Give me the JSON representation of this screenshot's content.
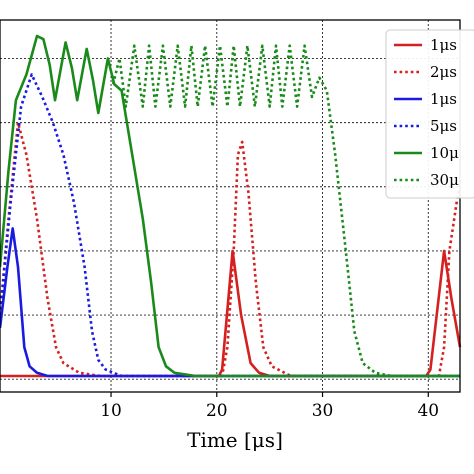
{
  "chart_data": {
    "type": "line",
    "title": "",
    "xlabel": "Time [μs]",
    "ylabel": "",
    "xlim": [
      -0.5,
      43
    ],
    "ylim": [
      -0.04,
      1.12
    ],
    "xticks": [
      10,
      20,
      30,
      40
    ],
    "xtick_labels": [
      "10",
      "20",
      "30",
      "40"
    ],
    "grid": true,
    "legend_placement": "top-right",
    "series": [
      {
        "name": "1μs",
        "color": "#d62020",
        "style": "solid",
        "points": [
          [
            -0.5,
            0.01
          ],
          [
            20.2,
            0.01
          ],
          [
            20.5,
            0.03
          ],
          [
            21.5,
            0.4
          ],
          [
            22.3,
            0.2
          ],
          [
            23.2,
            0.05
          ],
          [
            24,
            0.02
          ],
          [
            25,
            0.01
          ],
          [
            39.8,
            0.01
          ],
          [
            40.2,
            0.03
          ],
          [
            41.5,
            0.4
          ],
          [
            42.2,
            0.25
          ],
          [
            43,
            0.1
          ]
        ]
      },
      {
        "name": "2μs",
        "color": "#d62020",
        "style": "dotted",
        "points": [
          [
            -0.5,
            0.2
          ],
          [
            0.3,
            0.5
          ],
          [
            1.2,
            0.8
          ],
          [
            2,
            0.7
          ],
          [
            3,
            0.5
          ],
          [
            4,
            0.25
          ],
          [
            4.8,
            0.1
          ],
          [
            5.5,
            0.05
          ],
          [
            7,
            0.02
          ],
          [
            9,
            0.01
          ],
          [
            20.5,
            0.01
          ],
          [
            21,
            0.1
          ],
          [
            21.6,
            0.4
          ],
          [
            22,
            0.7
          ],
          [
            22.4,
            0.74
          ],
          [
            23,
            0.58
          ],
          [
            23.7,
            0.3
          ],
          [
            24.4,
            0.1
          ],
          [
            25.2,
            0.04
          ],
          [
            27,
            0.01
          ],
          [
            41,
            0.01
          ],
          [
            41.5,
            0.1
          ],
          [
            42,
            0.4
          ],
          [
            43,
            0.62
          ]
        ]
      },
      {
        "name": "1μs",
        "color": "#1a1ae0",
        "style": "solid",
        "points": [
          [
            -0.5,
            0.16
          ],
          [
            0.2,
            0.35
          ],
          [
            0.7,
            0.47
          ],
          [
            1.2,
            0.35
          ],
          [
            1.8,
            0.1
          ],
          [
            2.3,
            0.04
          ],
          [
            3,
            0.02
          ],
          [
            4,
            0.01
          ],
          [
            43,
            0.01
          ]
        ]
      },
      {
        "name": "5μs",
        "color": "#1a1ae0",
        "style": "dotted",
        "points": [
          [
            -0.5,
            0.2
          ],
          [
            0.5,
            0.55
          ],
          [
            1.5,
            0.85
          ],
          [
            2.5,
            0.95
          ],
          [
            3.5,
            0.88
          ],
          [
            4.5,
            0.8
          ],
          [
            5.5,
            0.7
          ],
          [
            6.5,
            0.55
          ],
          [
            7.5,
            0.35
          ],
          [
            8.2,
            0.15
          ],
          [
            8.8,
            0.06
          ],
          [
            9.5,
            0.03
          ],
          [
            11,
            0.01
          ],
          [
            43,
            0.01
          ]
        ]
      },
      {
        "name": "10μ",
        "color": "#1a8a1a",
        "style": "solid",
        "points": [
          [
            -0.5,
            0.35
          ],
          [
            0.3,
            0.65
          ],
          [
            1,
            0.87
          ],
          [
            2,
            0.95
          ],
          [
            3,
            1.07
          ],
          [
            3.6,
            1.06
          ],
          [
            4.2,
            0.98
          ],
          [
            4.7,
            0.87
          ],
          [
            5.7,
            1.05
          ],
          [
            6.3,
            0.97
          ],
          [
            6.8,
            0.87
          ],
          [
            7.7,
            1.03
          ],
          [
            8.3,
            0.93
          ],
          [
            8.8,
            0.83
          ],
          [
            9.7,
            1.0
          ],
          [
            10.3,
            0.92
          ],
          [
            11,
            0.9
          ],
          [
            12,
            0.7
          ],
          [
            13,
            0.5
          ],
          [
            13.8,
            0.3
          ],
          [
            14.5,
            0.1
          ],
          [
            15.2,
            0.04
          ],
          [
            16,
            0.02
          ],
          [
            18,
            0.01
          ],
          [
            43,
            0.01
          ]
        ]
      },
      {
        "name": "30μ",
        "color": "#1a8a1a",
        "style": "dotted",
        "points": [
          [
            10.2,
            0.92
          ],
          [
            10.8,
            1.0
          ],
          [
            11.4,
            0.85
          ],
          [
            12.2,
            1.04
          ],
          [
            13,
            0.85
          ],
          [
            13.6,
            1.04
          ],
          [
            14.2,
            0.85
          ],
          [
            14.9,
            1.04
          ],
          [
            15.6,
            0.85
          ],
          [
            16.3,
            1.04
          ],
          [
            17,
            0.85
          ],
          [
            17.6,
            1.04
          ],
          [
            18.2,
            0.85
          ],
          [
            18.9,
            1.04
          ],
          [
            19.6,
            0.85
          ],
          [
            20.3,
            1.04
          ],
          [
            21,
            0.85
          ],
          [
            21.6,
            1.04
          ],
          [
            22.2,
            0.85
          ],
          [
            22.9,
            1.04
          ],
          [
            23.6,
            0.85
          ],
          [
            24.3,
            1.04
          ],
          [
            25,
            0.85
          ],
          [
            25.6,
            1.04
          ],
          [
            26.2,
            0.85
          ],
          [
            26.9,
            1.04
          ],
          [
            27.6,
            0.85
          ],
          [
            28.3,
            1.04
          ],
          [
            29,
            0.88
          ],
          [
            29.7,
            0.94
          ],
          [
            30.4,
            0.9
          ],
          [
            31.2,
            0.7
          ],
          [
            32.2,
            0.4
          ],
          [
            33,
            0.15
          ],
          [
            33.8,
            0.05
          ],
          [
            35,
            0.02
          ],
          [
            36.5,
            0.01
          ],
          [
            43,
            0.01
          ]
        ]
      }
    ]
  }
}
